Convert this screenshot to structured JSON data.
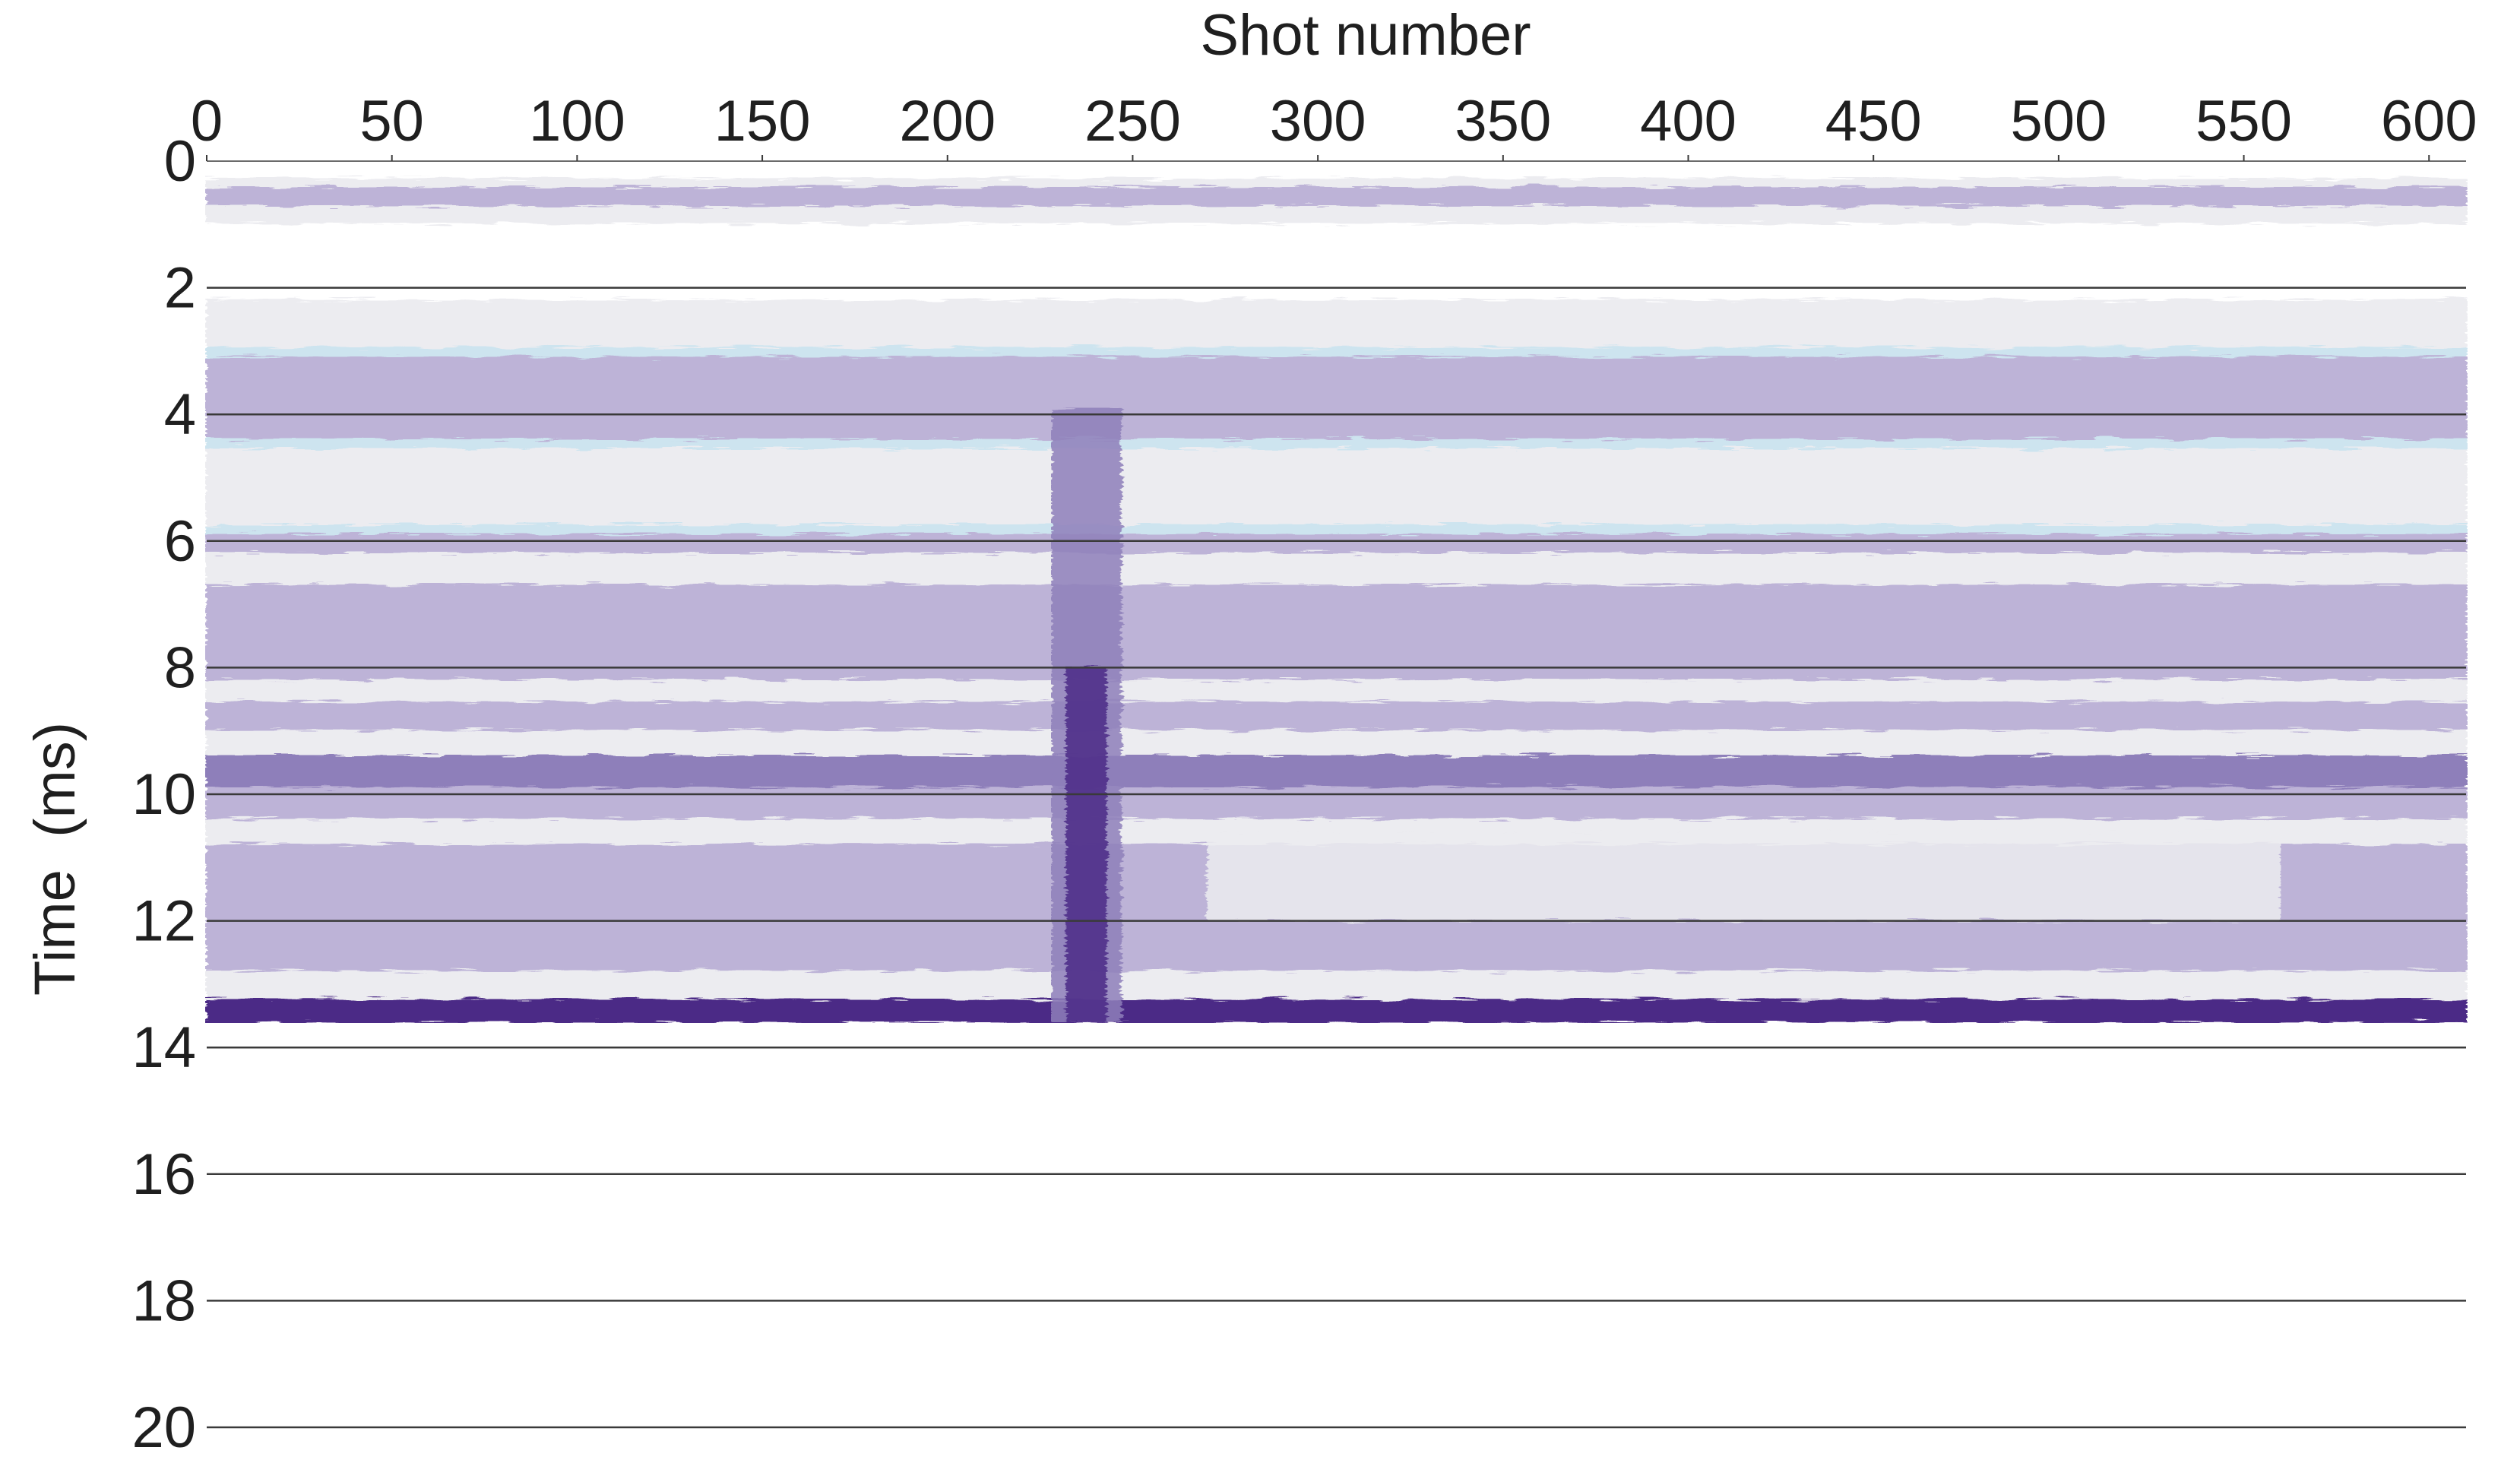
{
  "chart_data": {
    "type": "heatmap",
    "title": "",
    "xlabel": "Shot number",
    "ylabel": "Time  (ms)",
    "xlim": [
      0,
      610
    ],
    "ylim": [
      0,
      20
    ],
    "x_ticks": [
      0,
      50,
      100,
      150,
      200,
      250,
      300,
      350,
      400,
      450,
      500,
      550,
      600
    ],
    "y_ticks": [
      0,
      2,
      4,
      6,
      8,
      10,
      12,
      14,
      16,
      18,
      20
    ],
    "x_axis_position": "top",
    "y_axis_inverted": true,
    "grid": true,
    "data_time_range_ms": [
      0,
      13.6
    ],
    "palette": {
      "white": "#ffffff",
      "whitish": "#ececf0",
      "light_blue": "#cde4ef",
      "light_purple": "#bdb3d7",
      "medium_purple": "#8e7fba",
      "dark_purple": "#4b2b86"
    },
    "horizontal_bands": [
      {
        "t_start": 0.0,
        "t_end": 0.28,
        "color": "white"
      },
      {
        "t_start": 0.28,
        "t_end": 0.42,
        "color": "whitish"
      },
      {
        "t_start": 0.42,
        "t_end": 0.72,
        "color": "light_purple"
      },
      {
        "t_start": 0.72,
        "t_end": 1.0,
        "color": "whitish"
      },
      {
        "t_start": 1.0,
        "t_end": 2.2,
        "color": "white"
      },
      {
        "t_start": 2.2,
        "t_end": 2.95,
        "color": "whitish"
      },
      {
        "t_start": 2.95,
        "t_end": 3.1,
        "color": "light_blue"
      },
      {
        "t_start": 3.1,
        "t_end": 4.4,
        "color": "light_purple"
      },
      {
        "t_start": 4.4,
        "t_end": 4.55,
        "color": "light_blue"
      },
      {
        "t_start": 4.55,
        "t_end": 5.75,
        "color": "whitish"
      },
      {
        "t_start": 5.75,
        "t_end": 5.9,
        "color": "light_blue"
      },
      {
        "t_start": 5.9,
        "t_end": 6.2,
        "color": "light_purple"
      },
      {
        "t_start": 6.2,
        "t_end": 6.7,
        "color": "whitish"
      },
      {
        "t_start": 6.7,
        "t_end": 8.2,
        "color": "light_purple"
      },
      {
        "t_start": 8.2,
        "t_end": 8.55,
        "color": "whitish"
      },
      {
        "t_start": 8.55,
        "t_end": 9.0,
        "color": "light_purple"
      },
      {
        "t_start": 9.0,
        "t_end": 9.4,
        "color": "whitish"
      },
      {
        "t_start": 9.4,
        "t_end": 9.9,
        "color": "medium_purple"
      },
      {
        "t_start": 9.9,
        "t_end": 10.4,
        "color": "light_purple"
      },
      {
        "t_start": 10.4,
        "t_end": 10.8,
        "color": "whitish"
      },
      {
        "t_start": 10.8,
        "t_end": 12.8,
        "color": "light_purple"
      },
      {
        "t_start": 12.8,
        "t_end": 13.25,
        "color": "whitish"
      },
      {
        "t_start": 13.25,
        "t_end": 13.6,
        "color": "dark_purple"
      }
    ],
    "features": [
      {
        "name": "vertical disturbance",
        "shot_range": [
          228,
          247
        ],
        "t_range": [
          3.9,
          13.6
        ],
        "color": "medium_purple"
      },
      {
        "name": "vertical disturbance core",
        "shot_range": [
          232,
          243
        ],
        "t_range": [
          8.0,
          13.6
        ],
        "color": "dark_purple"
      },
      {
        "name": "bright undulating reflector",
        "shot_range": [
          270,
          560
        ],
        "t_range": [
          10.6,
          12.0
        ],
        "color": "whitish"
      }
    ]
  }
}
